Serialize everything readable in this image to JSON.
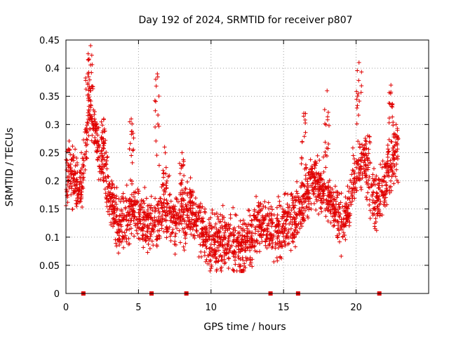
{
  "chart_data": {
    "type": "scatter",
    "title": "Day 192 of 2024, SRMTID for receiver p807",
    "xlabel": "GPS time / hours",
    "ylabel": "SRMTID / TECUs",
    "xlim": [
      0,
      25
    ],
    "ylim": [
      0,
      0.45
    ],
    "xticks": [
      0,
      5,
      10,
      15,
      20
    ],
    "yticks": [
      0,
      0.05,
      0.1,
      0.15,
      0.2,
      0.25,
      0.3,
      0.35,
      0.4,
      0.45
    ],
    "grid": true,
    "marker": "+",
    "color": "#e00000",
    "series": [
      {
        "name": "SRMTID",
        "profile": [
          [
            0.0,
            0.19
          ],
          [
            0.3,
            0.22
          ],
          [
            0.6,
            0.2
          ],
          [
            0.9,
            0.18
          ],
          [
            1.2,
            0.21
          ],
          [
            1.5,
            0.3
          ],
          [
            1.8,
            0.33
          ],
          [
            2.1,
            0.26
          ],
          [
            2.5,
            0.24
          ],
          [
            2.8,
            0.2
          ],
          [
            3.0,
            0.17
          ],
          [
            3.5,
            0.13
          ],
          [
            4.0,
            0.12
          ],
          [
            4.5,
            0.15
          ],
          [
            5.0,
            0.14
          ],
          [
            5.5,
            0.13
          ],
          [
            6.0,
            0.12
          ],
          [
            6.5,
            0.14
          ],
          [
            7.0,
            0.15
          ],
          [
            7.5,
            0.13
          ],
          [
            8.0,
            0.14
          ],
          [
            8.5,
            0.15
          ],
          [
            9.0,
            0.13
          ],
          [
            9.5,
            0.11
          ],
          [
            10.0,
            0.09
          ],
          [
            10.5,
            0.09
          ],
          [
            11.0,
            0.1
          ],
          [
            11.5,
            0.09
          ],
          [
            12.0,
            0.08
          ],
          [
            12.5,
            0.09
          ],
          [
            13.0,
            0.11
          ],
          [
            13.5,
            0.13
          ],
          [
            14.0,
            0.12
          ],
          [
            14.5,
            0.11
          ],
          [
            15.0,
            0.12
          ],
          [
            15.5,
            0.13
          ],
          [
            16.0,
            0.14
          ],
          [
            16.5,
            0.17
          ],
          [
            17.0,
            0.2
          ],
          [
            17.5,
            0.19
          ],
          [
            18.0,
            0.18
          ],
          [
            18.5,
            0.15
          ],
          [
            19.0,
            0.12
          ],
          [
            19.5,
            0.16
          ],
          [
            20.0,
            0.22
          ],
          [
            20.5,
            0.24
          ],
          [
            21.0,
            0.18
          ],
          [
            21.5,
            0.16
          ],
          [
            22.0,
            0.2
          ],
          [
            22.5,
            0.24
          ],
          [
            22.9,
            0.25
          ]
        ],
        "spikes": [
          [
            1.5,
            0.39
          ],
          [
            1.7,
            0.44
          ],
          [
            2.0,
            0.3
          ],
          [
            2.6,
            0.31
          ],
          [
            4.5,
            0.31
          ],
          [
            6.3,
            0.39
          ],
          [
            6.8,
            0.26
          ],
          [
            8.0,
            0.25
          ],
          [
            16.4,
            0.32
          ],
          [
            18.0,
            0.36
          ],
          [
            20.2,
            0.41
          ],
          [
            20.8,
            0.28
          ],
          [
            22.4,
            0.37
          ]
        ],
        "spread": 0.045,
        "n_points": 2400,
        "zero_markers_x": [
          1.2,
          5.9,
          8.3,
          14.1,
          16.0,
          21.6
        ]
      }
    ]
  }
}
